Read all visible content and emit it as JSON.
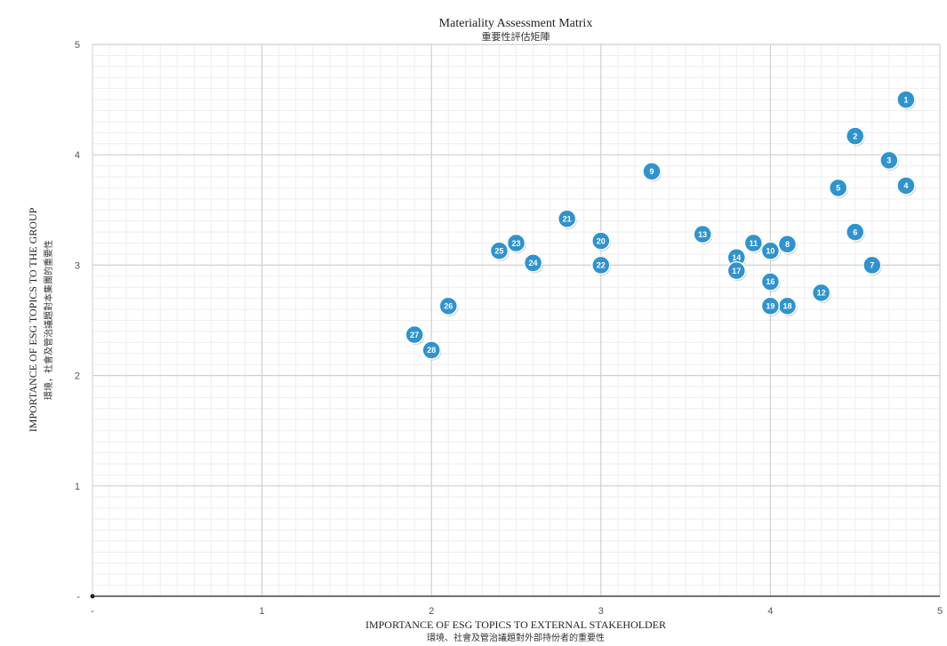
{
  "chart_data": {
    "type": "scatter",
    "title": "Materiality Assessment Matrix",
    "subtitle": "重要性評估矩陣",
    "xlabel": "IMPORTANCE OF ESG TOPICS TO EXTERNAL STAKEHOLDER",
    "xlabel_sub": "環境、社會及管治議題對外部持份者的重要性",
    "ylabel": "IMPORTANCE OF ESG TOPICS TO THE GROUP",
    "ylabel_sub": "環境，社會及管治議題對本集團的重要性",
    "xlim": [
      0,
      5
    ],
    "ylim": [
      0,
      5
    ],
    "x_ticks": [
      "-",
      "1",
      "2",
      "3",
      "4",
      "5"
    ],
    "y_ticks": [
      "-",
      "1",
      "2",
      "3",
      "4",
      "5"
    ],
    "grid": true,
    "point_color": "#2f93cf",
    "points": [
      {
        "label": "1",
        "x": 4.8,
        "y": 4.5
      },
      {
        "label": "2",
        "x": 4.5,
        "y": 4.17
      },
      {
        "label": "3",
        "x": 4.7,
        "y": 3.95
      },
      {
        "label": "4",
        "x": 4.8,
        "y": 3.72
      },
      {
        "label": "5",
        "x": 4.4,
        "y": 3.7
      },
      {
        "label": "6",
        "x": 4.5,
        "y": 3.3
      },
      {
        "label": "7",
        "x": 4.6,
        "y": 3.0
      },
      {
        "label": "8",
        "x": 4.1,
        "y": 3.19
      },
      {
        "label": "9",
        "x": 3.3,
        "y": 3.85
      },
      {
        "label": "10",
        "x": 4.0,
        "y": 3.13
      },
      {
        "label": "11",
        "x": 3.9,
        "y": 3.2
      },
      {
        "label": "12",
        "x": 4.3,
        "y": 2.75
      },
      {
        "label": "13",
        "x": 3.6,
        "y": 3.28
      },
      {
        "label": "14",
        "x": 3.8,
        "y": 3.07
      },
      {
        "label": "16",
        "x": 4.0,
        "y": 2.85
      },
      {
        "label": "17",
        "x": 3.8,
        "y": 2.95
      },
      {
        "label": "18",
        "x": 4.1,
        "y": 2.63
      },
      {
        "label": "19",
        "x": 4.0,
        "y": 2.63
      },
      {
        "label": "20",
        "x": 3.0,
        "y": 3.22
      },
      {
        "label": "21",
        "x": 2.8,
        "y": 3.42
      },
      {
        "label": "22",
        "x": 3.0,
        "y": 3.0
      },
      {
        "label": "23",
        "x": 2.5,
        "y": 3.2
      },
      {
        "label": "24",
        "x": 2.6,
        "y": 3.02
      },
      {
        "label": "25",
        "x": 2.4,
        "y": 3.13
      },
      {
        "label": "26",
        "x": 2.1,
        "y": 2.63
      },
      {
        "label": "27",
        "x": 1.9,
        "y": 2.37
      },
      {
        "label": "28",
        "x": 2.0,
        "y": 2.23
      }
    ]
  }
}
